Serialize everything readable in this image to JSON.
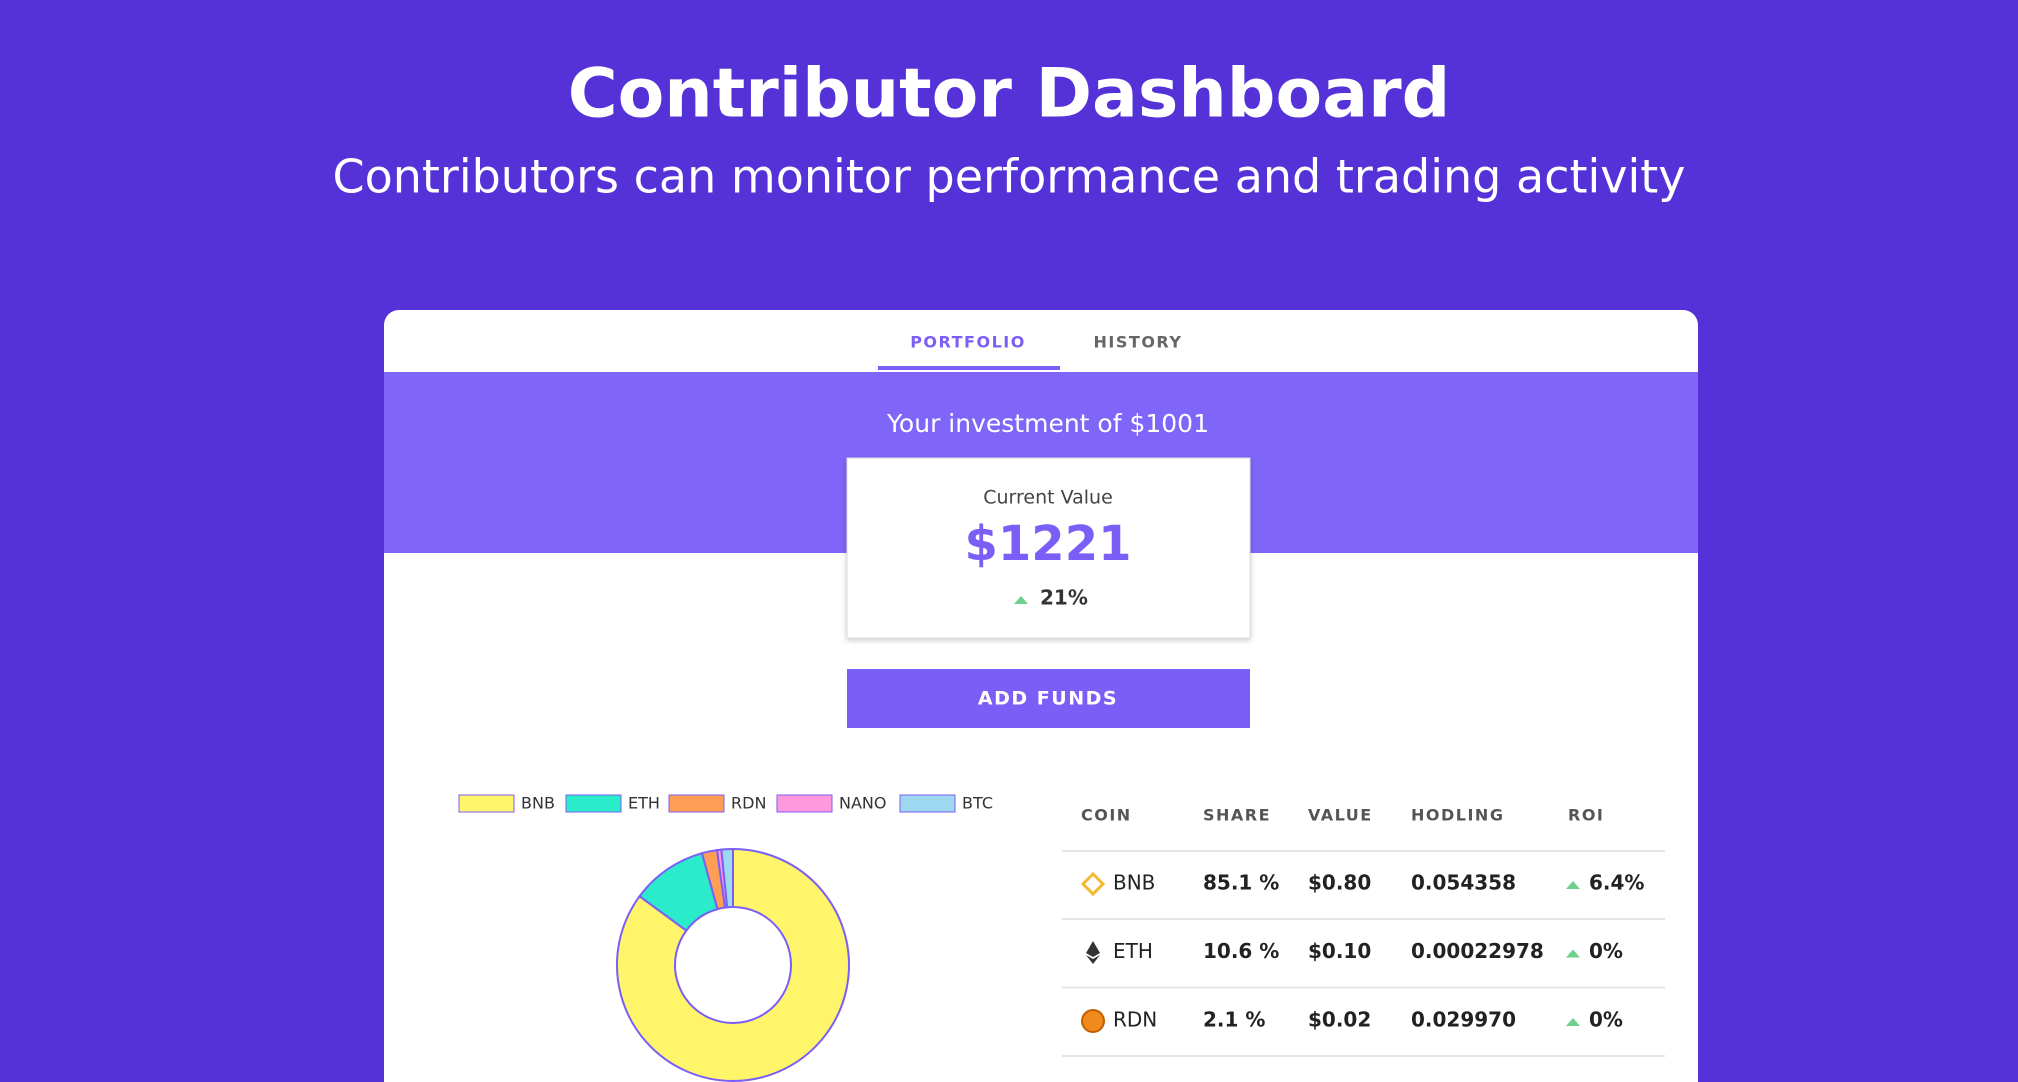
{
  "header": {
    "title": "Contributor Dashboard",
    "subtitle": "Contributors can monitor performance and trading activity"
  },
  "tabs": [
    "PORTFOLIO",
    "HISTORY"
  ],
  "investment": "Your investment of $1001",
  "current_value": {
    "label": "Current Value",
    "value": "$1221",
    "change": "21%"
  },
  "button": "ADD FUNDS",
  "table": {
    "columns": [
      "COIN",
      "SHARE",
      "VALUE",
      "HODLING",
      "ROI"
    ],
    "rows": [
      [
        "BNB",
        "85.1 %",
        "$0.80",
        "0.054358",
        "6.4%"
      ],
      [
        "ETH",
        "10.6 %",
        "$0.10",
        "0.00022978",
        "0%"
      ],
      [
        "RDN",
        "2.1 %",
        "$0.02",
        "0.029970",
        "0%"
      ]
    ]
  },
  "chart_data": {
    "type": "donut",
    "categories": [
      "BNB",
      "ETH",
      "RDN",
      "NANO",
      "BTC"
    ],
    "values": [
      85.1,
      10.6,
      2.1,
      0.6,
      1.6
    ],
    "colors": [
      "#fff56a",
      "#2aeccb",
      "#ff9f55",
      "#ff99dd",
      "#9ed8f0"
    ],
    "border_color": "#7b5ef5"
  }
}
